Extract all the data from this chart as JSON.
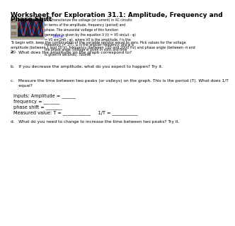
{
  "title": "Worksheet for Exploration 31.1: Amplitude, Frequency and\nPhase Shift",
  "title_fontsize": 6.5,
  "body_fontsize": 4.2,
  "small_fontsize": 3.8,
  "bg_color": "#ffffff",
  "text_color": "#000000",
  "image_placeholder_color": "#c8c8c8",
  "right_text": "We characterize the voltage (or current) in AC circuits\nin terms of the amplitude, frequency (period) and\nphase. The sinusoidal voltage of this function\ngenerator is given by the equation V (t) = V0 sin(ωt - φ)\n= V0 sin(2πft - φ), where V0 is the amplitude, f is the\nfrequency (= 1/T), ω is the angular frequency, and φ is\nthe phase angle (voltage is given in volts and time\nis given in seconds). Tutorial",
  "intro_text": "To begin with, keep the combination of the variable resistor equal to zero. Pick values for the voltage\namplitude (between 1 and 10 V), frequency (between 100 and 2000 Hz) and phase angle (between -π and\n2π).",
  "q1": "a.   What does the amplitude on the graph correspond to?",
  "q2": "b.   If you decrease the amplitude, what do you expect to happen? Try it.",
  "q3": "c.   Measure the time between two peaks (or valleys) on the graph. This is the period (T). What does 1/T\n      equal?",
  "inputs_label": "Inputs: Amplitude = ______",
  "freq_label": "frequency = _______",
  "phase_label": "phase shift = _______",
  "measured_label": "Measured value: T = ____________     1/T = ___________",
  "q4": "d.   What do you need to change to increase the time between two peaks? Try it.",
  "link_color": "#0000ff"
}
